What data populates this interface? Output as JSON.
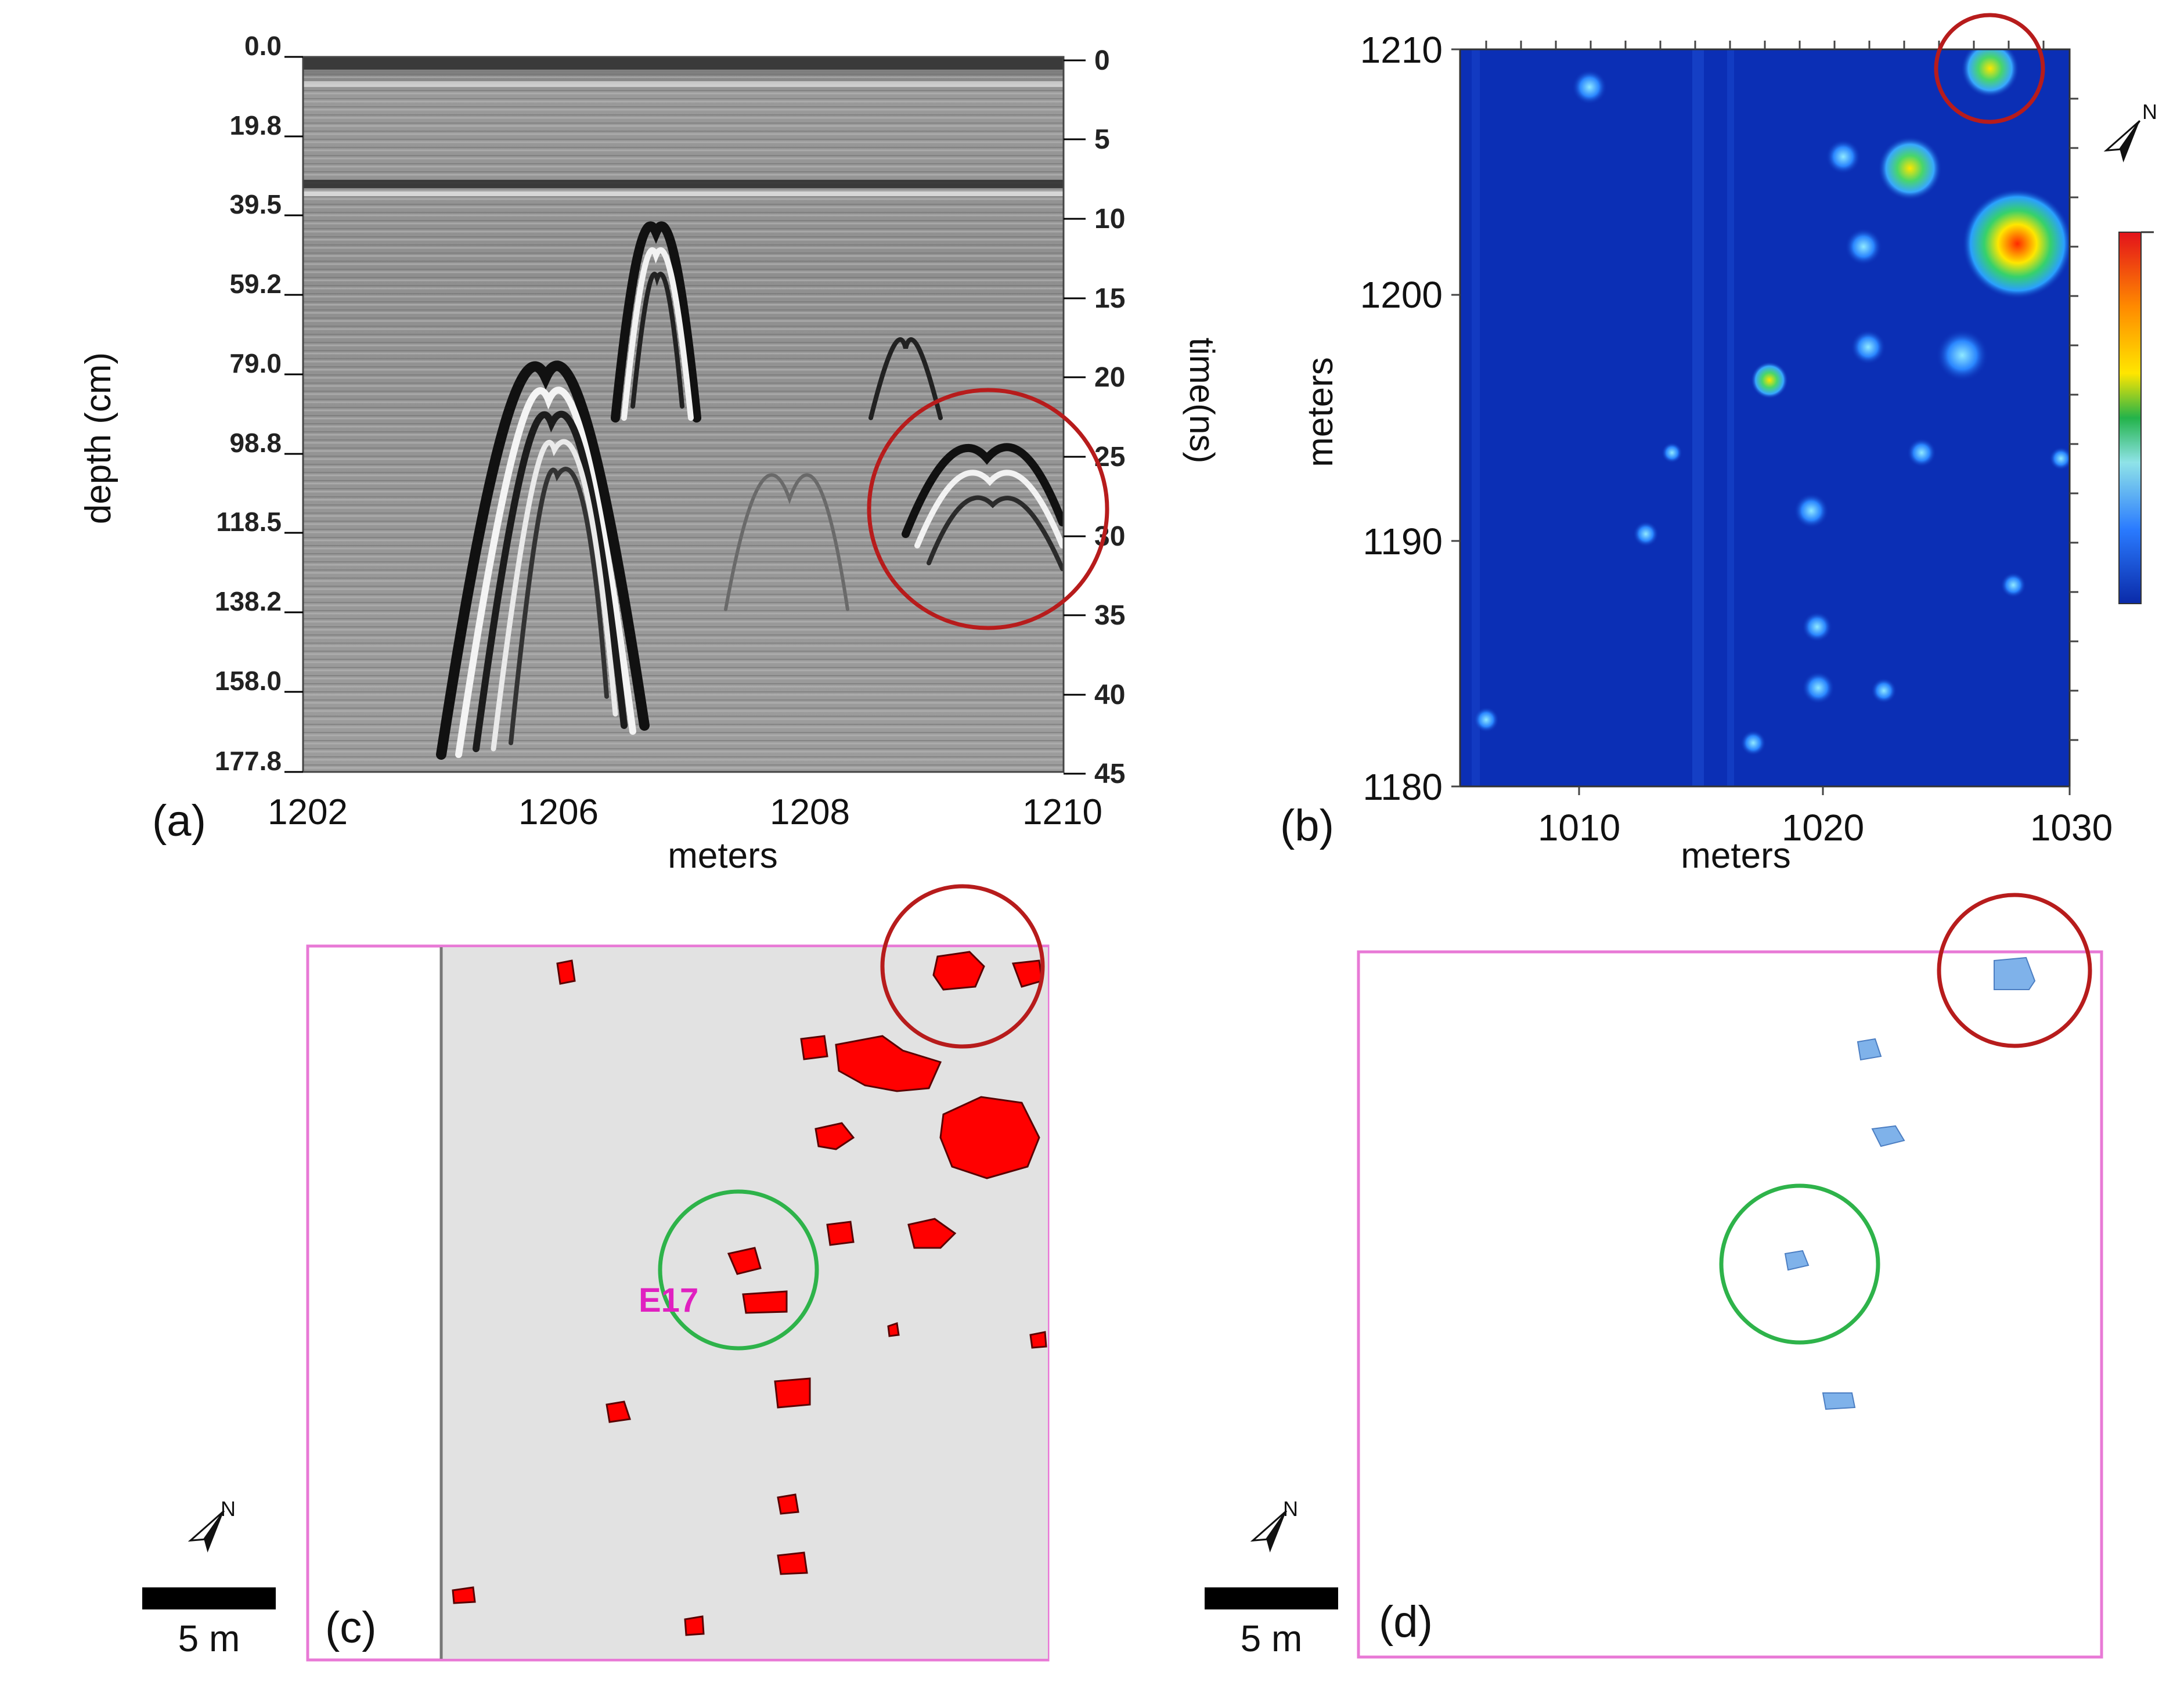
{
  "figure": {
    "colors": {
      "highlight_circle": "#b71c1c",
      "match_circle": "#2eb34a",
      "panel_frame": "#e879d6",
      "label_text": "#e020c0",
      "c_blobs": "#ff0000",
      "d_blobs": "#7fb2ea",
      "c_background": "#e2e2e2",
      "heat_background": "#0b2fb5"
    },
    "panels": {
      "a": {
        "label": "(a)",
        "type": "radargram",
        "left_axis_title": "depth (cm)",
        "right_axis_title": "time(ns)",
        "x_axis_title": "meters",
        "depth_ticks": [
          "0.0",
          "19.8",
          "39.5",
          "59.2",
          "79.0",
          "98.8",
          "118.5",
          "138.2",
          "158.0",
          "177.8"
        ],
        "time_ticks": [
          "0",
          "5",
          "10",
          "15",
          "20",
          "25",
          "30",
          "35",
          "40",
          "45"
        ],
        "x_ticks": [
          "1202",
          "1206",
          "1208",
          "1210"
        ]
      },
      "b": {
        "label": "(b)",
        "type": "heatmap",
        "x_axis_title": "meters",
        "y_axis_title": "meters",
        "x_ticks": [
          "1010",
          "1020",
          "1030"
        ],
        "y_ticks": [
          "1210",
          "1200",
          "1190",
          "1180"
        ],
        "north_icon": "north-arrow-icon",
        "north_label": "N"
      },
      "c": {
        "label": "(c)",
        "type": "classified-map",
        "anomaly_label": "E17",
        "scale_bar_label": "5 m",
        "north_icon": "north-arrow-icon",
        "north_label": "N"
      },
      "d": {
        "label": "(d)",
        "type": "classified-map",
        "scale_bar_label": "5 m",
        "north_icon": "north-arrow-icon",
        "north_label": "N"
      }
    }
  },
  "chart_data": [
    {
      "type": "radargram",
      "panel": "a",
      "xlabel": "meters",
      "ylabel_left": "depth (cm)",
      "ylabel_right": "time(ns)",
      "xlim": [
        1202,
        1210
      ],
      "depth_range_cm": [
        0.0,
        177.8
      ],
      "time_range_ns": [
        0,
        45
      ],
      "x_tick_labels": [
        "1202",
        "1206",
        "1208",
        "1210"
      ],
      "depth_tick_labels": [
        "0.0",
        "19.8",
        "39.5",
        "59.2",
        "79.0",
        "98.8",
        "118.5",
        "138.2",
        "158.0",
        "177.8"
      ],
      "time_tick_labels": [
        "0",
        "5",
        "10",
        "15",
        "20",
        "25",
        "30",
        "35",
        "40",
        "45"
      ],
      "annotations": [
        {
          "shape": "circle",
          "color": "red",
          "at_x_m": 1209.6,
          "at_time_ns": 28
        }
      ]
    },
    {
      "type": "heatmap",
      "panel": "b",
      "xlabel": "meters",
      "ylabel": "meters",
      "xlim": [
        1005,
        1030
      ],
      "ylim": [
        1180,
        1210
      ],
      "x_tick_labels": [
        "1010",
        "1020",
        "1030"
      ],
      "y_tick_labels": [
        "1180",
        "1190",
        "1200",
        "1210"
      ],
      "colorbar": "blue-cyan-green-yellow-red",
      "annotations": [
        {
          "shape": "circle",
          "color": "red",
          "at_x_m": 1026.4,
          "at_y_m": 1209
        }
      ]
    }
  ]
}
